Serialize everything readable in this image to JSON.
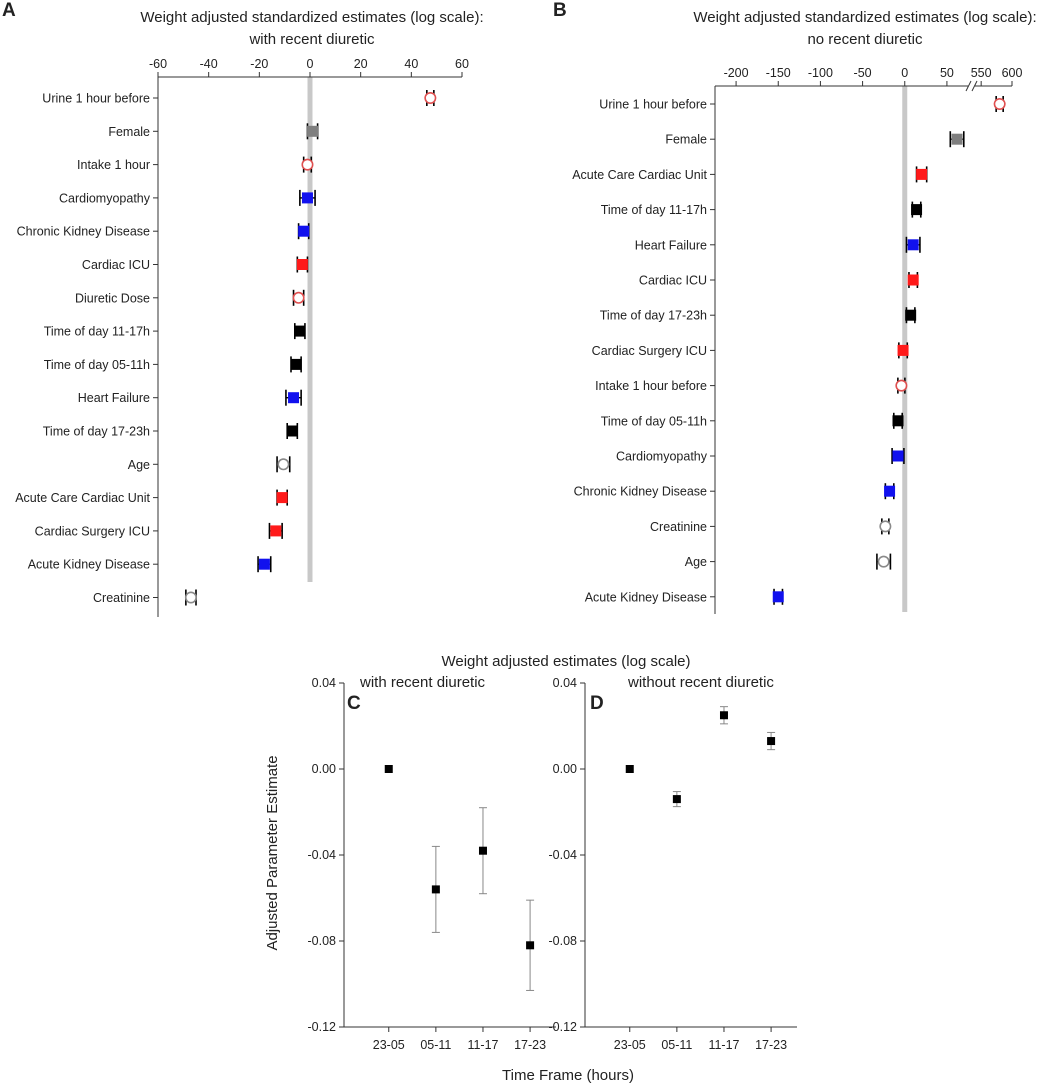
{
  "colors": {
    "red": "#ff1a1a",
    "blue": "#1111ee",
    "black": "#000000",
    "gray": "#7f7f7f",
    "open_red": "#e05050",
    "open_gray": "#8a8a8a",
    "zero_line": "#c8c8c8",
    "axis": "#333333",
    "errbar": "#888888"
  },
  "chart_data": [
    {
      "panel": "A",
      "type": "scatter",
      "title": "Weight adjusted standardized estimates (log scale):",
      "subtitle": "with recent diuretic",
      "xlim": [
        -60,
        60
      ],
      "xticks": [
        -60,
        -40,
        -20,
        0,
        20,
        40,
        60
      ],
      "grid": false,
      "points": [
        {
          "label": "Urine 1 hour before",
          "value": 47.5,
          "err": 1.2,
          "color": "open_red",
          "marker": "open-circle"
        },
        {
          "label": "Female",
          "value": 1.0,
          "err": 2.0,
          "color": "gray",
          "marker": "square"
        },
        {
          "label": "Intake 1 hour",
          "value": -1.0,
          "err": 1.5,
          "color": "open_red",
          "marker": "open-circle"
        },
        {
          "label": "Cardiomyopathy",
          "value": -1.0,
          "err": 3.0,
          "color": "blue",
          "marker": "square"
        },
        {
          "label": "Chronic Kidney Disease",
          "value": -2.5,
          "err": 2.0,
          "color": "blue",
          "marker": "square"
        },
        {
          "label": "Cardiac ICU",
          "value": -3.0,
          "err": 2.0,
          "color": "red",
          "marker": "square"
        },
        {
          "label": "Diuretic Dose",
          "value": -4.5,
          "err": 2.0,
          "color": "open_red",
          "marker": "open-circle"
        },
        {
          "label": "Time of day 11-17h",
          "value": -4.0,
          "err": 2.0,
          "color": "black",
          "marker": "square"
        },
        {
          "label": "Time of day 05-11h",
          "value": -5.5,
          "err": 2.0,
          "color": "black",
          "marker": "square"
        },
        {
          "label": "Heart Failure",
          "value": -6.5,
          "err": 3.0,
          "color": "blue",
          "marker": "square"
        },
        {
          "label": "Time of day 17-23h",
          "value": -7.0,
          "err": 2.0,
          "color": "black",
          "marker": "square"
        },
        {
          "label": "Age",
          "value": -10.5,
          "err": 2.5,
          "color": "open_gray",
          "marker": "open-circle"
        },
        {
          "label": "Acute Care Cardiac Unit",
          "value": -11.0,
          "err": 2.0,
          "color": "red",
          "marker": "square"
        },
        {
          "label": "Cardiac Surgery ICU",
          "value": -13.5,
          "err": 2.5,
          "color": "red",
          "marker": "square"
        },
        {
          "label": "Acute Kidney Disease",
          "value": -18.0,
          "err": 2.5,
          "color": "blue",
          "marker": "square"
        },
        {
          "label": "Creatinine",
          "value": -47.0,
          "err": 2.0,
          "color": "open_gray",
          "marker": "open-circle"
        }
      ]
    },
    {
      "panel": "B",
      "type": "scatter",
      "title": "Weight adjusted standardized estimates (log scale):",
      "subtitle": "no recent diuretic",
      "xlim": [
        -225,
        600
      ],
      "axis_break": [
        75,
        540
      ],
      "xticks": [
        "-200",
        "-150",
        "-100",
        "-50",
        "0",
        "50",
        "550",
        "600"
      ],
      "grid": false,
      "points": [
        {
          "label": "Urine 1 hour before",
          "value": 580,
          "err": 3,
          "color": "open_red",
          "marker": "open-circle"
        },
        {
          "label": "Female",
          "value": 62,
          "err": 8,
          "color": "gray",
          "marker": "square"
        },
        {
          "label": "Acute Care Cardiac Unit",
          "value": 20,
          "err": 6,
          "color": "red",
          "marker": "square"
        },
        {
          "label": "Time of day 11-17h",
          "value": 14,
          "err": 5,
          "color": "black",
          "marker": "square"
        },
        {
          "label": "Heart Failure",
          "value": 10,
          "err": 8,
          "color": "blue",
          "marker": "square"
        },
        {
          "label": "Cardiac ICU",
          "value": 10,
          "err": 5,
          "color": "red",
          "marker": "square"
        },
        {
          "label": "Time of day 17-23h",
          "value": 7,
          "err": 5,
          "color": "black",
          "marker": "square"
        },
        {
          "label": "Cardiac Surgery ICU",
          "value": -2,
          "err": 5,
          "color": "red",
          "marker": "square"
        },
        {
          "label": "Intake 1 hour before",
          "value": -4,
          "err": 4,
          "color": "open_red",
          "marker": "open-circle"
        },
        {
          "label": "Time of day 05-11h",
          "value": -8,
          "err": 5,
          "color": "black",
          "marker": "square"
        },
        {
          "label": "Cardiomyopathy",
          "value": -8,
          "err": 7,
          "color": "blue",
          "marker": "square"
        },
        {
          "label": "Chronic Kidney Disease",
          "value": -18,
          "err": 5,
          "color": "blue",
          "marker": "square"
        },
        {
          "label": "Creatinine",
          "value": -23,
          "err": 4,
          "color": "open_gray",
          "marker": "open-circle"
        },
        {
          "label": "Age",
          "value": -25,
          "err": 8,
          "color": "open_gray",
          "marker": "open-circle"
        },
        {
          "label": "Acute Kidney Disease",
          "value": -150,
          "err": 5,
          "color": "blue",
          "marker": "square"
        }
      ]
    },
    {
      "panel": "C",
      "type": "scatter",
      "subtitle": "with recent diuretic",
      "ylim": [
        -0.12,
        0.04
      ],
      "yticks": [
        "0.04",
        "0.00",
        "-0.04",
        "-0.08",
        "-0.12"
      ],
      "categories": [
        "23-05",
        "05-11",
        "11-17",
        "17-23"
      ],
      "values": [
        0.0,
        -0.056,
        -0.038,
        -0.082
      ],
      "errors": [
        0.0,
        0.02,
        0.02,
        0.021
      ]
    },
    {
      "panel": "D",
      "type": "scatter",
      "subtitle": "without recent diuretic",
      "ylim": [
        -0.12,
        0.04
      ],
      "yticks": [
        "0.04",
        "0.00",
        "-0.04",
        "-0.08",
        "-0.12"
      ],
      "categories": [
        "23-05",
        "05-11",
        "11-17",
        "17-23"
      ],
      "values": [
        0.0,
        -0.014,
        0.025,
        0.013
      ],
      "errors": [
        0.0,
        0.0035,
        0.004,
        0.004
      ]
    }
  ],
  "bottom": {
    "title": "Weight adjusted estimates (log scale)",
    "ylabel": "Adjusted Parameter Estimate",
    "xlabel": "Time Frame (hours)"
  }
}
